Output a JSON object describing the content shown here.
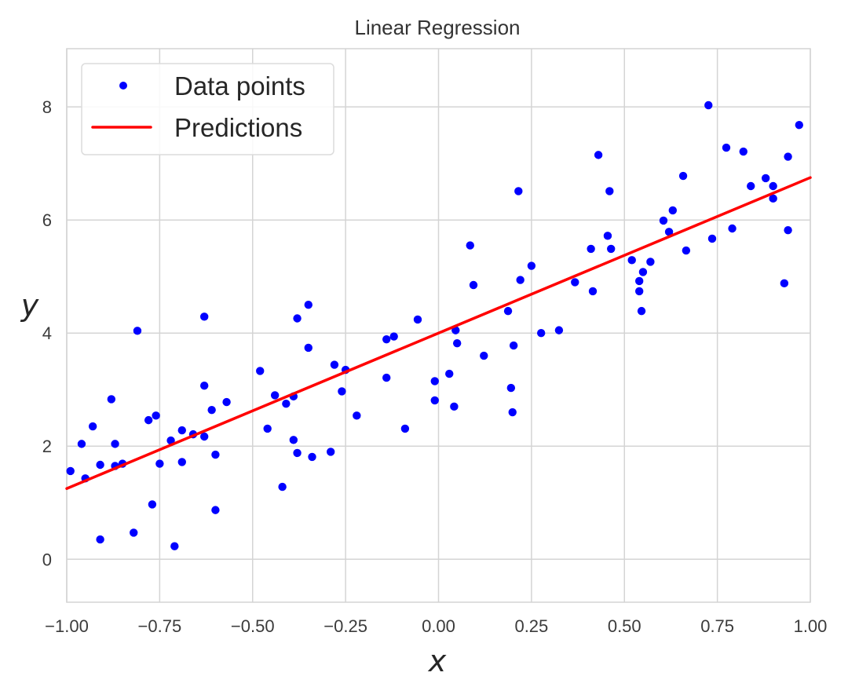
{
  "chart_data": {
    "type": "scatter",
    "title": "Linear Regression",
    "xlabel": "x",
    "ylabel": "y",
    "xlim": [
      -1.0,
      1.0
    ],
    "ylim": [
      -0.76,
      9.03
    ],
    "grid": true,
    "legend_position": "upper left",
    "x_ticks": [
      -1.0,
      -0.75,
      -0.5,
      -0.25,
      0.0,
      0.25,
      0.5,
      0.75,
      1.0
    ],
    "x_tick_labels": [
      "−1.00",
      "−0.75",
      "−0.50",
      "−0.25",
      "0.00",
      "0.25",
      "0.50",
      "0.75",
      "1.00"
    ],
    "y_ticks": [
      0,
      2,
      4,
      6,
      8
    ],
    "y_tick_labels": [
      "0",
      "2",
      "4",
      "6",
      "8"
    ],
    "series": [
      {
        "name": "Data points",
        "type": "scatter",
        "color": "#0000ff",
        "points": [
          [
            -0.81,
            4.04
          ],
          [
            -0.63,
            4.29
          ],
          [
            -0.88,
            2.83
          ],
          [
            -0.93,
            2.35
          ],
          [
            -0.96,
            2.04
          ],
          [
            -0.87,
            2.04
          ],
          [
            -0.78,
            2.46
          ],
          [
            -0.76,
            2.54
          ],
          [
            -0.63,
            3.07
          ],
          [
            -0.61,
            2.64
          ],
          [
            -0.57,
            2.78
          ],
          [
            -0.69,
            2.28
          ],
          [
            -0.72,
            2.1
          ],
          [
            -0.66,
            2.21
          ],
          [
            -0.63,
            2.17
          ],
          [
            -0.99,
            1.56
          ],
          [
            -0.95,
            1.43
          ],
          [
            -0.91,
            1.67
          ],
          [
            -0.87,
            1.65
          ],
          [
            -0.85,
            1.69
          ],
          [
            -0.75,
            1.69
          ],
          [
            -0.69,
            1.72
          ],
          [
            -0.6,
            1.85
          ],
          [
            -0.77,
            0.97
          ],
          [
            -0.6,
            0.87
          ],
          [
            -0.91,
            0.35
          ],
          [
            -0.82,
            0.47
          ],
          [
            -0.71,
            0.23
          ],
          [
            -0.35,
            4.5
          ],
          [
            -0.38,
            4.26
          ],
          [
            -0.056,
            4.24
          ],
          [
            -0.35,
            3.74
          ],
          [
            -0.14,
            3.89
          ],
          [
            -0.12,
            3.94
          ],
          [
            -0.48,
            3.33
          ],
          [
            -0.28,
            3.44
          ],
          [
            -0.25,
            3.35
          ],
          [
            -0.14,
            3.21
          ],
          [
            -0.01,
            3.15
          ],
          [
            -0.01,
            2.81
          ],
          [
            -0.44,
            2.9
          ],
          [
            -0.39,
            2.88
          ],
          [
            -0.41,
            2.75
          ],
          [
            -0.26,
            2.97
          ],
          [
            -0.22,
            2.54
          ],
          [
            -0.09,
            2.31
          ],
          [
            -0.46,
            2.31
          ],
          [
            -0.39,
            2.11
          ],
          [
            -0.38,
            1.88
          ],
          [
            -0.34,
            1.81
          ],
          [
            -0.29,
            1.9
          ],
          [
            -0.42,
            1.28
          ],
          [
            0.085,
            5.55
          ],
          [
            0.25,
            5.19
          ],
          [
            0.22,
            4.94
          ],
          [
            0.094,
            4.85
          ],
          [
            0.187,
            4.39
          ],
          [
            0.046,
            4.05
          ],
          [
            0.05,
            3.82
          ],
          [
            0.202,
            3.78
          ],
          [
            0.276,
            4.0
          ],
          [
            0.324,
            4.05
          ],
          [
            0.122,
            3.6
          ],
          [
            0.029,
            3.28
          ],
          [
            0.042,
            2.7
          ],
          [
            0.195,
            3.03
          ],
          [
            0.199,
            2.6
          ],
          [
            0.215,
            6.51
          ],
          [
            0.43,
            7.15
          ],
          [
            0.46,
            6.51
          ],
          [
            0.63,
            6.17
          ],
          [
            0.605,
            5.99
          ],
          [
            0.62,
            5.79
          ],
          [
            0.455,
            5.72
          ],
          [
            0.41,
            5.49
          ],
          [
            0.464,
            5.49
          ],
          [
            0.52,
            5.29
          ],
          [
            0.57,
            5.26
          ],
          [
            0.55,
            5.08
          ],
          [
            0.54,
            4.92
          ],
          [
            0.54,
            4.74
          ],
          [
            0.546,
            4.39
          ],
          [
            0.367,
            4.9
          ],
          [
            0.415,
            4.74
          ],
          [
            0.726,
            8.03
          ],
          [
            0.97,
            7.68
          ],
          [
            0.774,
            7.28
          ],
          [
            0.82,
            7.21
          ],
          [
            0.94,
            7.12
          ],
          [
            0.658,
            6.78
          ],
          [
            0.88,
            6.74
          ],
          [
            0.84,
            6.6
          ],
          [
            0.9,
            6.6
          ],
          [
            0.9,
            6.38
          ],
          [
            0.79,
            5.85
          ],
          [
            0.94,
            5.82
          ],
          [
            0.736,
            5.67
          ],
          [
            0.666,
            5.46
          ],
          [
            0.93,
            4.88
          ]
        ]
      },
      {
        "name": "Predictions",
        "type": "line",
        "color": "#ff0000",
        "x": [
          -1.0,
          1.0
        ],
        "values": [
          1.25,
          6.75
        ]
      }
    ]
  },
  "legend": {
    "items": [
      {
        "label": "Data points",
        "marker": "dot",
        "color": "#0000ff"
      },
      {
        "label": "Predictions",
        "marker": "line",
        "color": "#ff0000"
      }
    ]
  },
  "style": {
    "grid_color": "#d4d4d4",
    "tick_color": "#3b3b3b",
    "background": "#ffffff"
  }
}
